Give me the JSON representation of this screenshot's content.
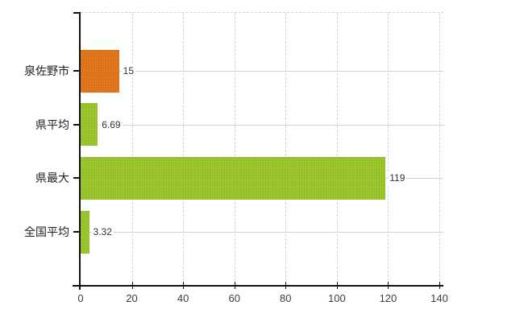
{
  "chart": {
    "background": "#ffffff",
    "colors": {
      "bar_orange": "#e2771d",
      "bar_green": "#9dc72e",
      "axis": "#111111",
      "grid_vertical": "#d9d0d9",
      "grid_horizontal": "#ccd6cc",
      "value_label": "#333333",
      "category_label": "#222222",
      "tick_label": "#3d3d3d"
    }
  },
  "chart_data": {
    "type": "bar",
    "orientation": "horizontal",
    "categories": [
      "泉佐野市",
      "県平均",
      "県最大",
      "全国平均"
    ],
    "values": [
      15,
      6.69,
      119,
      3.32
    ],
    "value_labels": [
      "15",
      "6.69",
      "119",
      "3.32"
    ],
    "bar_colors": [
      "#e2771d",
      "#9dc72e",
      "#9dc72e",
      "#9dc72e"
    ],
    "xlim": [
      0,
      140
    ],
    "xticks": [
      0,
      20,
      40,
      60,
      80,
      100,
      120,
      140
    ],
    "grid": "on",
    "legend": "none"
  }
}
